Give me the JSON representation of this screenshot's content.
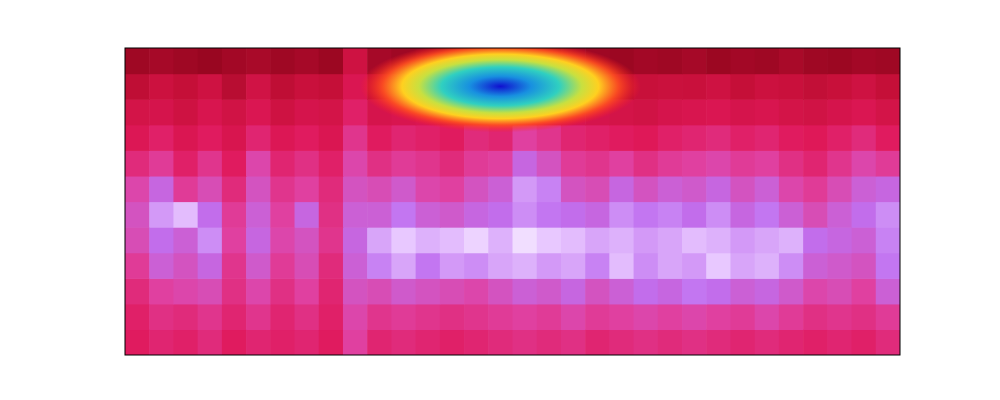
{
  "chart_data": {
    "type": "heatmap",
    "tick_labels": false,
    "xlim": [
      0,
      32
    ],
    "ylim": [
      0,
      12
    ],
    "zlim": [
      0,
      100
    ],
    "cells": [
      [
        46,
        50,
        48,
        52,
        46,
        50,
        48,
        50,
        46,
        60,
        50,
        52,
        50,
        48,
        50,
        52,
        54,
        52,
        54,
        50,
        52,
        54,
        52,
        54,
        52,
        50,
        52,
        50,
        48,
        50,
        48,
        52
      ],
      [
        48,
        54,
        52,
        56,
        50,
        56,
        50,
        54,
        48,
        62,
        56,
        58,
        56,
        54,
        56,
        58,
        60,
        58,
        62,
        58,
        60,
        62,
        60,
        62,
        60,
        58,
        62,
        58,
        54,
        56,
        54,
        58
      ],
      [
        52,
        60,
        62,
        64,
        54,
        62,
        54,
        60,
        50,
        66,
        64,
        68,
        66,
        64,
        62,
        66,
        70,
        68,
        72,
        66,
        70,
        74,
        72,
        76,
        74,
        70,
        72,
        68,
        62,
        64,
        60,
        70
      ],
      [
        58,
        70,
        66,
        72,
        56,
        68,
        58,
        64,
        52,
        70,
        78,
        84,
        76,
        82,
        80,
        84,
        86,
        82,
        84,
        78,
        88,
        80,
        84,
        82,
        90,
        84,
        86,
        80,
        70,
        68,
        66,
        76
      ],
      [
        64,
        74,
        70,
        80,
        60,
        72,
        62,
        66,
        56,
        72,
        84,
        90,
        86,
        88,
        92,
        86,
        94,
        90,
        88,
        84,
        86,
        82,
        84,
        88,
        86,
        82,
        84,
        86,
        74,
        72,
        70,
        78
      ],
      [
        66,
        82,
        88,
        74,
        58,
        70,
        60,
        72,
        54,
        70,
        70,
        76,
        70,
        68,
        72,
        74,
        80,
        76,
        74,
        72,
        80,
        76,
        78,
        74,
        80,
        72,
        76,
        70,
        64,
        70,
        74,
        80
      ],
      [
        62,
        72,
        58,
        64,
        52,
        66,
        56,
        60,
        52,
        66,
        64,
        68,
        62,
        60,
        66,
        70,
        82,
        78,
        66,
        64,
        72,
        66,
        70,
        68,
        72,
        66,
        70,
        62,
        58,
        64,
        70,
        72
      ],
      [
        52,
        58,
        48,
        56,
        46,
        62,
        50,
        54,
        48,
        62,
        54,
        58,
        56,
        52,
        58,
        60,
        72,
        66,
        58,
        56,
        60,
        54,
        58,
        60,
        62,
        58,
        60,
        54,
        50,
        56,
        62,
        58
      ],
      [
        42,
        48,
        40,
        46,
        38,
        50,
        42,
        46,
        40,
        56,
        46,
        50,
        48,
        46,
        52,
        50,
        60,
        56,
        50,
        48,
        46,
        44,
        48,
        50,
        52,
        48,
        50,
        46,
        44,
        48,
        52,
        46
      ],
      [
        34,
        36,
        30,
        38,
        32,
        40,
        30,
        36,
        34,
        48,
        36,
        38,
        40,
        36,
        38,
        42,
        44,
        40,
        38,
        36,
        34,
        32,
        36,
        38,
        40,
        36,
        38,
        34,
        32,
        36,
        40,
        34
      ],
      [
        22,
        28,
        24,
        30,
        20,
        32,
        22,
        26,
        24,
        40,
        24,
        28,
        26,
        25,
        27,
        26,
        30,
        28,
        26,
        24,
        22,
        25,
        27,
        26,
        30,
        24,
        28,
        26,
        23,
        25,
        30,
        24
      ],
      [
        12,
        14,
        12,
        10,
        13,
        15,
        12,
        14,
        11,
        30,
        14,
        12,
        13,
        12,
        11,
        12,
        13,
        12,
        14,
        12,
        11,
        13,
        12,
        14,
        11,
        13,
        12,
        15,
        12,
        11,
        13,
        12
      ]
    ],
    "highlight": {
      "x": 15.5,
      "y": 10.5,
      "rx": 5.8,
      "ry": 1.8
    }
  }
}
